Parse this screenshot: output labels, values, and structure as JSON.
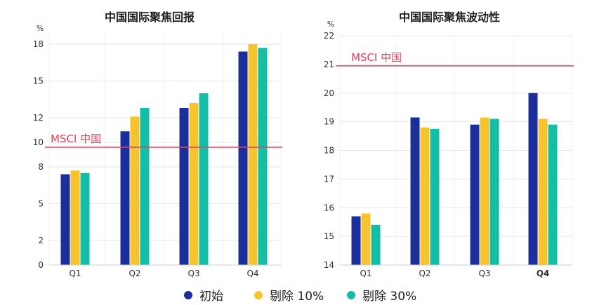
{
  "colors": {
    "initial": "#1b2f9c",
    "ex10": "#f7c42e",
    "ex30": "#12bfa6",
    "reference": "#e0455e",
    "grid": "#e6e6e6"
  },
  "legend": [
    {
      "name": "初始",
      "color": "#1b2f9c"
    },
    {
      "name": "剔除 10%",
      "color": "#f7c42e"
    },
    {
      "name": "剔除 30%",
      "color": "#12bfa6"
    }
  ],
  "chart_data": [
    {
      "type": "bar",
      "title": "中国国际聚焦回报",
      "unit": "%",
      "categories": [
        "Q1",
        "Q2",
        "Q3",
        "Q4"
      ],
      "ylim": [
        0,
        19.2
      ],
      "yticks": [
        0,
        2,
        5,
        8,
        10,
        12,
        15,
        18
      ],
      "grid": true,
      "series": [
        {
          "name": "初始",
          "values": [
            7.4,
            10.9,
            12.8,
            17.4
          ]
        },
        {
          "name": "剔除 10%",
          "values": [
            7.7,
            12.1,
            13.2,
            18.0
          ]
        },
        {
          "name": "剔除 30%",
          "values": [
            7.5,
            12.8,
            14.0,
            17.7
          ]
        }
      ],
      "reference": {
        "label": "MSCI 中国",
        "value": 9.6
      }
    },
    {
      "type": "bar",
      "title": "中国国际聚焦波动性",
      "unit": "%",
      "categories": [
        "Q1",
        "Q2",
        "Q3",
        "Q4"
      ],
      "bold_category": "Q4",
      "ylim": [
        14,
        22
      ],
      "yticks": [
        14,
        15,
        16,
        17,
        18,
        19,
        20,
        21,
        22
      ],
      "grid": true,
      "series": [
        {
          "name": "初始",
          "values": [
            15.7,
            19.15,
            18.9,
            20.0
          ]
        },
        {
          "name": "剔除 10%",
          "values": [
            15.8,
            18.8,
            19.15,
            19.1
          ]
        },
        {
          "name": "剔除 30%",
          "values": [
            15.4,
            18.75,
            19.1,
            18.9
          ]
        }
      ],
      "reference": {
        "label": "MSCI 中国",
        "value": 20.95
      }
    }
  ]
}
